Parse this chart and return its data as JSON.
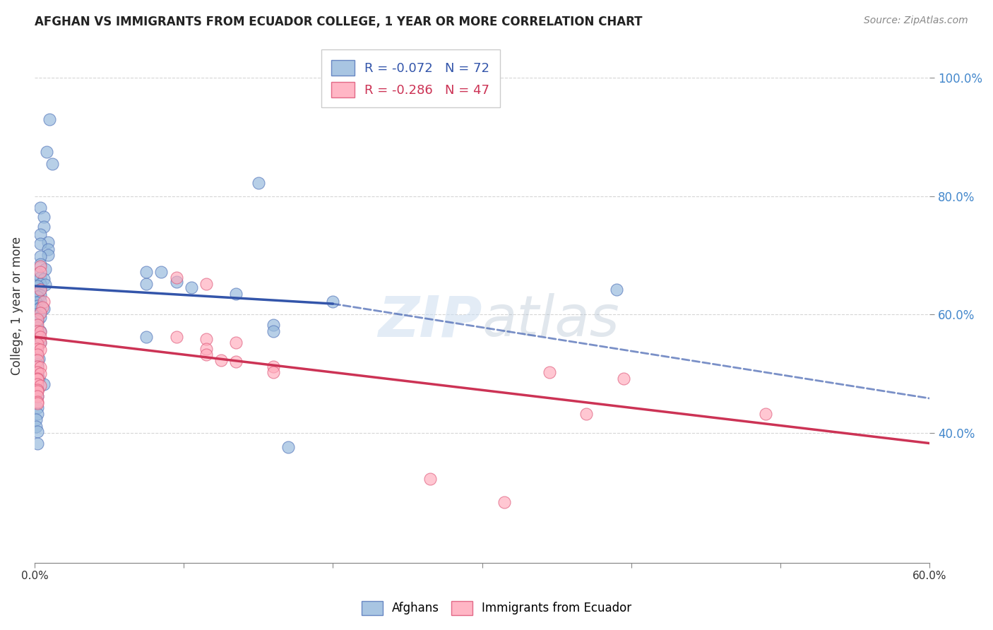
{
  "title": "AFGHAN VS IMMIGRANTS FROM ECUADOR COLLEGE, 1 YEAR OR MORE CORRELATION CHART",
  "source": "Source: ZipAtlas.com",
  "ylabel": "College, 1 year or more",
  "xlim": [
    0.0,
    0.6
  ],
  "ylim": [
    0.18,
    1.05
  ],
  "yticks": [
    0.4,
    0.6,
    0.8,
    1.0
  ],
  "ytick_labels": [
    "40.0%",
    "60.0%",
    "80.0%",
    "100.0%"
  ],
  "xticks": [
    0.0,
    0.1,
    0.2,
    0.3,
    0.4,
    0.5,
    0.6
  ],
  "xtick_labels": [
    "0.0%",
    "",
    "",
    "",
    "",
    "",
    "60.0%"
  ],
  "legend1_label": "R = -0.072   N = 72",
  "legend2_label": "R = -0.286   N = 47",
  "blue_color": "#99bbdd",
  "pink_color": "#ffaabb",
  "blue_edge_color": "#5577bb",
  "pink_edge_color": "#dd5577",
  "blue_line_color": "#3355aa",
  "pink_line_color": "#cc3355",
  "right_axis_color": "#4488cc",
  "blue_scatter": [
    [
      0.01,
      0.93
    ],
    [
      0.008,
      0.875
    ],
    [
      0.012,
      0.855
    ],
    [
      0.004,
      0.78
    ],
    [
      0.006,
      0.765
    ],
    [
      0.006,
      0.748
    ],
    [
      0.004,
      0.735
    ],
    [
      0.009,
      0.722
    ],
    [
      0.004,
      0.72
    ],
    [
      0.009,
      0.71
    ],
    [
      0.009,
      0.7
    ],
    [
      0.004,
      0.698
    ],
    [
      0.004,
      0.685
    ],
    [
      0.007,
      0.677
    ],
    [
      0.002,
      0.668
    ],
    [
      0.004,
      0.662
    ],
    [
      0.006,
      0.66
    ],
    [
      0.004,
      0.652
    ],
    [
      0.007,
      0.65
    ],
    [
      0.002,
      0.648
    ],
    [
      0.004,
      0.642
    ],
    [
      0.002,
      0.635
    ],
    [
      0.004,
      0.632
    ],
    [
      0.002,
      0.63
    ],
    [
      0.004,
      0.623
    ],
    [
      0.001,
      0.62
    ],
    [
      0.002,
      0.615
    ],
    [
      0.004,
      0.612
    ],
    [
      0.006,
      0.61
    ],
    [
      0.002,
      0.608
    ],
    [
      0.004,
      0.602
    ],
    [
      0.001,
      0.6
    ],
    [
      0.002,
      0.598
    ],
    [
      0.004,
      0.595
    ],
    [
      0.001,
      0.59
    ],
    [
      0.002,
      0.588
    ],
    [
      0.002,
      0.578
    ],
    [
      0.004,
      0.572
    ],
    [
      0.002,
      0.568
    ],
    [
      0.003,
      0.562
    ],
    [
      0.001,
      0.555
    ],
    [
      0.004,
      0.552
    ],
    [
      0.002,
      0.545
    ],
    [
      0.001,
      0.535
    ],
    [
      0.003,
      0.525
    ],
    [
      0.002,
      0.515
    ],
    [
      0.002,
      0.512
    ],
    [
      0.002,
      0.502
    ],
    [
      0.002,
      0.5
    ],
    [
      0.003,
      0.492
    ],
    [
      0.006,
      0.482
    ],
    [
      0.002,
      0.472
    ],
    [
      0.002,
      0.462
    ],
    [
      0.002,
      0.442
    ],
    [
      0.002,
      0.432
    ],
    [
      0.001,
      0.422
    ],
    [
      0.001,
      0.41
    ],
    [
      0.002,
      0.402
    ],
    [
      0.002,
      0.382
    ],
    [
      0.15,
      0.822
    ],
    [
      0.085,
      0.672
    ],
    [
      0.095,
      0.655
    ],
    [
      0.105,
      0.645
    ],
    [
      0.135,
      0.635
    ],
    [
      0.2,
      0.622
    ],
    [
      0.16,
      0.582
    ],
    [
      0.16,
      0.572
    ],
    [
      0.39,
      0.642
    ],
    [
      0.17,
      0.375
    ],
    [
      0.075,
      0.562
    ],
    [
      0.075,
      0.652
    ],
    [
      0.075,
      0.672
    ]
  ],
  "pink_scatter": [
    [
      0.004,
      0.682
    ],
    [
      0.004,
      0.672
    ],
    [
      0.004,
      0.642
    ],
    [
      0.006,
      0.622
    ],
    [
      0.005,
      0.612
    ],
    [
      0.004,
      0.602
    ],
    [
      0.002,
      0.592
    ],
    [
      0.002,
      0.582
    ],
    [
      0.002,
      0.572
    ],
    [
      0.004,
      0.57
    ],
    [
      0.004,
      0.562
    ],
    [
      0.004,
      0.552
    ],
    [
      0.002,
      0.55
    ],
    [
      0.002,
      0.542
    ],
    [
      0.004,
      0.54
    ],
    [
      0.002,
      0.532
    ],
    [
      0.002,
      0.522
    ],
    [
      0.002,
      0.512
    ],
    [
      0.004,
      0.51
    ],
    [
      0.002,
      0.502
    ],
    [
      0.004,
      0.5
    ],
    [
      0.002,
      0.492
    ],
    [
      0.002,
      0.49
    ],
    [
      0.002,
      0.482
    ],
    [
      0.004,
      0.48
    ],
    [
      0.002,
      0.472
    ],
    [
      0.002,
      0.47
    ],
    [
      0.002,
      0.462
    ],
    [
      0.002,
      0.452
    ],
    [
      0.002,
      0.45
    ],
    [
      0.095,
      0.662
    ],
    [
      0.115,
      0.652
    ],
    [
      0.095,
      0.562
    ],
    [
      0.115,
      0.558
    ],
    [
      0.135,
      0.552
    ],
    [
      0.115,
      0.542
    ],
    [
      0.115,
      0.532
    ],
    [
      0.125,
      0.522
    ],
    [
      0.135,
      0.52
    ],
    [
      0.16,
      0.512
    ],
    [
      0.16,
      0.502
    ],
    [
      0.345,
      0.502
    ],
    [
      0.395,
      0.492
    ],
    [
      0.37,
      0.432
    ],
    [
      0.49,
      0.432
    ],
    [
      0.265,
      0.322
    ],
    [
      0.315,
      0.282
    ]
  ],
  "blue_line_solid": {
    "x0": 0.0,
    "x1": 0.2,
    "y0": 0.648,
    "y1": 0.618
  },
  "blue_line_dashed": {
    "x0": 0.2,
    "x1": 0.6,
    "y0": 0.618,
    "y1": 0.458
  },
  "pink_line": {
    "x0": 0.0,
    "x1": 0.6,
    "y0": 0.562,
    "y1": 0.382
  }
}
